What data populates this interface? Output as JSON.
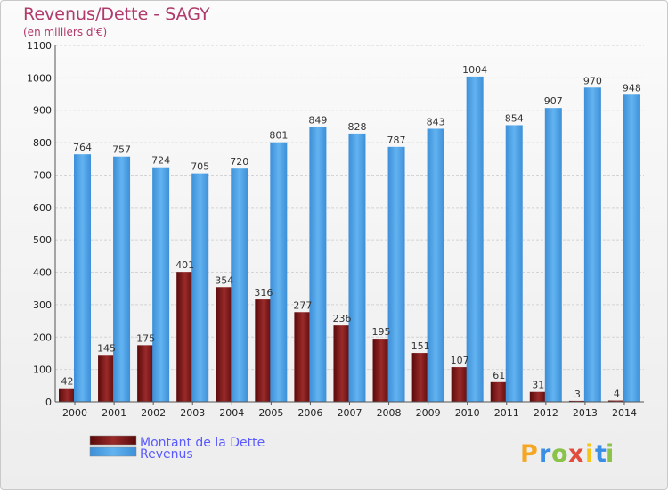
{
  "title": "Revenus/Dette - SAGY",
  "subtitle": "(en milliers d'€)",
  "brand": {
    "name": "Proxiti",
    "letters": [
      "P",
      "r",
      "o",
      "x",
      "i",
      "t",
      "i"
    ],
    "colors": [
      "#f5a623",
      "#3a8ee6",
      "#8bc34a",
      "#e24c3c",
      "#f5c518",
      "#3a8ee6",
      "#8bc34a"
    ]
  },
  "colors": {
    "dette": "#7a1414",
    "revenus": "#4aa3e8",
    "title": "#b03a6b",
    "legend_text": "#5a5aff"
  },
  "chart_data": {
    "type": "bar",
    "title": "Revenus/Dette - SAGY",
    "subtitle": "(en milliers d'€)",
    "xlabel": "",
    "ylabel": "",
    "ylim": [
      0,
      1100
    ],
    "yticks": [
      0,
      100,
      200,
      300,
      400,
      500,
      600,
      700,
      800,
      900,
      1000,
      1100
    ],
    "grid": true,
    "legend_position": "bottom-left",
    "categories": [
      "2000",
      "2001",
      "2002",
      "2003",
      "2004",
      "2005",
      "2006",
      "2007",
      "2008",
      "2009",
      "2010",
      "2011",
      "2012",
      "2013",
      "2014"
    ],
    "series": [
      {
        "name": "Montant de la Dette",
        "color": "#7a1414",
        "values": [
          42,
          145,
          175,
          401,
          354,
          316,
          277,
          236,
          195,
          151,
          107,
          61,
          31,
          3,
          4
        ]
      },
      {
        "name": "Revenus",
        "color": "#4aa3e8",
        "values": [
          764,
          757,
          724,
          705,
          720,
          801,
          849,
          828,
          787,
          843,
          1004,
          854,
          907,
          970,
          948
        ]
      }
    ]
  }
}
